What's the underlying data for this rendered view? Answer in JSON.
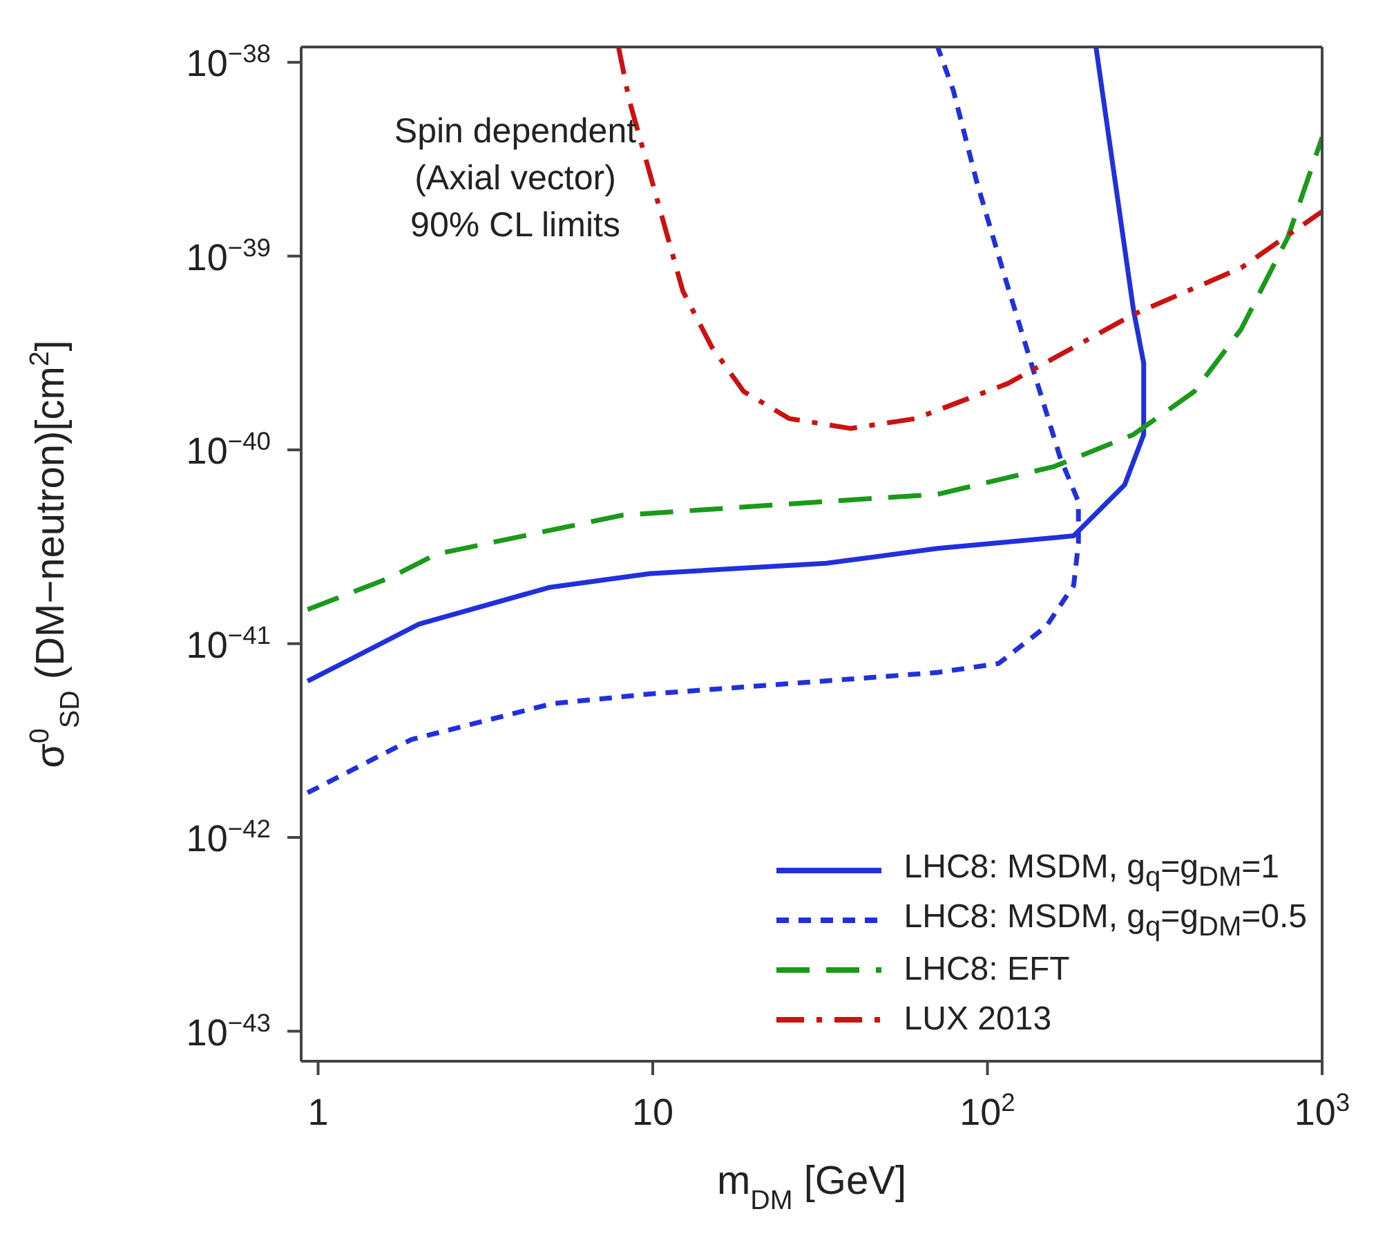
{
  "chart_data": {
    "type": "line",
    "xlabel": "m$_{DM}$ [GeV]",
    "ylabel": "σ$^{0}$$_{SD}$ (DM−neutron)[cm$^{2}$]",
    "annotations": [
      "Spin dependent\n(Axial vector)\n90% CL limits"
    ],
    "log": "xy",
    "xlim": [
      0.89,
      1000
    ],
    "xticks": [
      1,
      10,
      {
        "value": 100,
        "label": "10$^{2}$"
      },
      {
        "value": 1000,
        "label": "10$^{3}$"
      }
    ],
    "ylim": [
      7e-44,
      1.2e-38
    ],
    "yticks": [
      {
        "value": 1e-43,
        "label": "10$^{−43}$"
      },
      {
        "value": 1e-42,
        "label": "10$^{−42}$"
      },
      {
        "value": 1e-41,
        "label": "10$^{−41}$"
      },
      {
        "value": 1e-40,
        "label": "10$^{−40}$"
      },
      {
        "value": 1e-39,
        "label": "10$^{−39}$"
      },
      {
        "value": 1e-38,
        "label": "10$^{−38}$"
      }
    ],
    "legend": "bottom right",
    "marker": "none",
    "series": [
      {
        "name": "LHC8: MSDM, g$_{q}$=g$_{DM}$=1",
        "color": "#2030dd",
        "line_style": "solid",
        "x": [
          0.93,
          2.0,
          4.9,
          9.8,
          33,
          71,
          181,
          257,
          293,
          293,
          273,
          241,
          211
        ],
        "values": [
          6.4e-42,
          1.26e-41,
          1.95e-41,
          2.3e-41,
          2.6e-41,
          3.1e-41,
          3.6e-41,
          6.6e-41,
          1.2e-40,
          2.8e-40,
          5.3e-40,
          2.4e-39,
          1.2e-38
        ]
      },
      {
        "name": "LHC8: MSDM, g$_{q}$=g$_{DM}$=0.5",
        "color": "#2030dd",
        "line_style": "dotted",
        "x": [
          0.93,
          1.9,
          5.0,
          9.8,
          32,
          71,
          108,
          150,
          181,
          187,
          187,
          165,
          136,
          112,
          93,
          79,
          71
        ],
        "values": [
          1.7e-42,
          3.2e-42,
          4.9e-42,
          5.5e-42,
          6.4e-42,
          7.1e-42,
          7.9e-42,
          1.23e-41,
          2e-41,
          3.3e-41,
          5.4e-41,
          9.1e-41,
          2.7e-40,
          8.1e-40,
          2.4e-39,
          7.2e-39,
          1.2e-38
        ]
      },
      {
        "name": "LHC8: EFT",
        "color": "#1a9a1a",
        "line_style": "dashed",
        "x": [
          0.93,
          1.65,
          2.26,
          8.1,
          32,
          71,
          158,
          273,
          415,
          573,
          790,
          1000
        ],
        "values": [
          1.5e-41,
          2.2e-41,
          2.9e-41,
          4.6e-41,
          5.4e-41,
          5.9e-41,
          8.2e-41,
          1.2e-40,
          2e-40,
          4.2e-40,
          1.25e-39,
          4.1e-39
        ]
      },
      {
        "name": "LUX 2013",
        "color": "#cc1111",
        "line_style": "dashdot",
        "x": [
          7.9,
          8.5,
          12.3,
          15,
          18.7,
          25.6,
          39,
          61,
          115,
          273,
          573,
          1000
        ],
        "values": [
          1.2e-38,
          6.4e-39,
          6.6e-40,
          3.4e-40,
          2e-40,
          1.45e-40,
          1.29e-40,
          1.45e-40,
          2.2e-40,
          5e-40,
          8.7e-40,
          1.7e-39
        ]
      }
    ]
  }
}
